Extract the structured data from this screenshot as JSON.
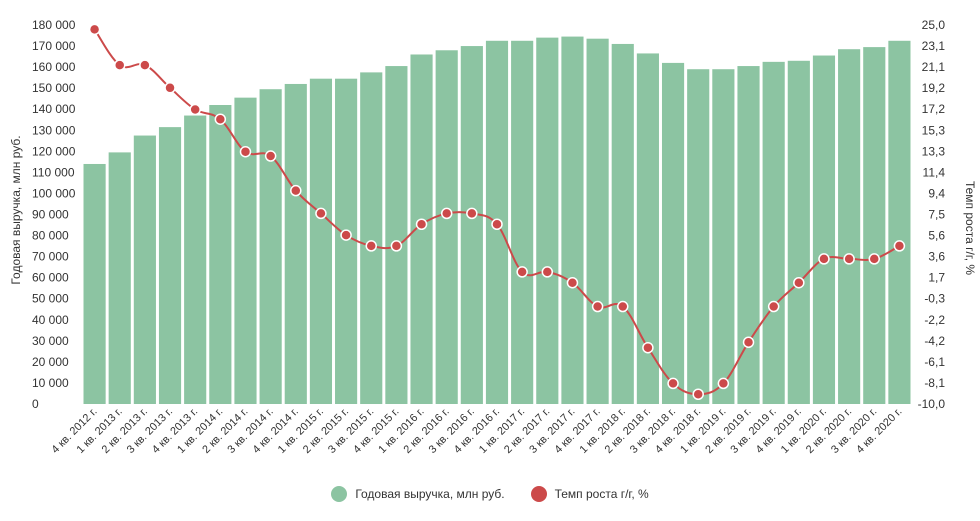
{
  "chart_data": {
    "type": "bar+line",
    "categories": [
      "4 кв. 2012 г.",
      "1 кв. 2013 г.",
      "2 кв. 2013 г.",
      "3 кв. 2013 г.",
      "4 кв. 2013 г.",
      "1 кв. 2014 г.",
      "2 кв. 2014 г.",
      "3 кв. 2014 г.",
      "4 кв. 2014 г.",
      "1 кв. 2015 г.",
      "2 кв. 2015 г.",
      "3 кв. 2015 г.",
      "4 кв. 2015 г.",
      "1 кв. 2016 г.",
      "2 кв. 2016 г.",
      "3 кв. 2016 г.",
      "4 кв. 2016 г.",
      "1 кв. 2017 г.",
      "2 кв. 2017 г.",
      "3 кв. 2017 г.",
      "4 кв. 2017 г.",
      "1 кв. 2018 г.",
      "2 кв. 2018 г.",
      "3 кв. 2018 г.",
      "4 кв. 2018 г.",
      "1 кв. 2019 г.",
      "2 кв. 2019 г.",
      "3 кв. 2019 г.",
      "4 кв. 2019 г.",
      "1 кв. 2020 г.",
      "2 кв. 2020 г.",
      "3 кв. 2020 г.",
      "4 кв. 2020 г."
    ],
    "series": [
      {
        "name": "Годовая выручка, млн руб.",
        "axis": "left",
        "kind": "bar",
        "color": "#8cc4a2",
        "values": [
          114000,
          119500,
          127500,
          131500,
          137000,
          142000,
          145500,
          149500,
          152000,
          154500,
          154500,
          157500,
          160500,
          166000,
          168000,
          170000,
          172500,
          172500,
          174000,
          174500,
          173500,
          171000,
          166500,
          162000,
          159000,
          159000,
          160500,
          162500,
          163000,
          165500,
          168500,
          169500,
          172500
        ]
      },
      {
        "name": "Темп роста г/г, %",
        "axis": "right",
        "kind": "line",
        "color": "#cc4a4a",
        "values": [
          24.6,
          21.3,
          21.3,
          19.2,
          17.2,
          16.3,
          13.3,
          12.9,
          9.7,
          7.6,
          5.6,
          4.6,
          4.6,
          6.6,
          7.6,
          7.6,
          6.6,
          2.2,
          2.2,
          1.2,
          -1.0,
          -1.0,
          -4.8,
          -8.1,
          -9.1,
          -8.1,
          -4.3,
          -1.0,
          1.2,
          3.4,
          3.4,
          3.4,
          4.6
        ]
      }
    ],
    "left_axis": {
      "title": "Годовая выручка, млн руб.",
      "min": 0,
      "max": 180000,
      "step": 10000,
      "ticks": [
        "0",
        "10 000",
        "20 000",
        "30 000",
        "40 000",
        "50 000",
        "60 000",
        "70 000",
        "80 000",
        "90 000",
        "100 000",
        "110 000",
        "120 000",
        "130 000",
        "140 000",
        "150 000",
        "160 000",
        "170 000",
        "180 000"
      ]
    },
    "right_axis": {
      "title": "Темп роста г/г, %",
      "min": -10.0,
      "max": 25.0,
      "ticks": [
        "-10,0",
        "-8,1",
        "-6,1",
        "-4,2",
        "-2,2",
        "-0,3",
        "1,7",
        "3,6",
        "5,6",
        "7,5",
        "9,4",
        "11,4",
        "13,3",
        "15,3",
        "17,2",
        "19,2",
        "21,1",
        "23,1",
        "25,0"
      ]
    },
    "legend": {
      "placement": "bottom-center"
    },
    "grid": false
  }
}
